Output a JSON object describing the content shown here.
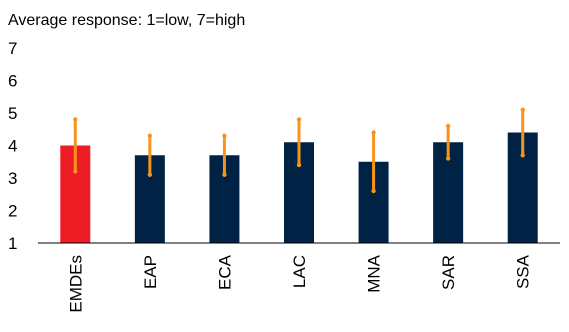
{
  "chart_data": {
    "type": "bar",
    "title": "",
    "subtitle": "Average response: 1=low, 7=high",
    "xlabel": "",
    "ylabel": "",
    "categories": [
      "EMDEs",
      "EAP",
      "ECA",
      "LAC",
      "MNA",
      "SAR",
      "SSA"
    ],
    "values": [
      4.0,
      3.7,
      3.7,
      4.1,
      3.5,
      4.1,
      4.4
    ],
    "error_low": [
      3.2,
      3.1,
      3.1,
      3.4,
      2.6,
      3.6,
      3.7
    ],
    "error_high": [
      4.8,
      4.3,
      4.3,
      4.8,
      4.4,
      4.6,
      5.1
    ],
    "ylim": [
      1,
      7
    ],
    "yticks": [
      "1",
      "2",
      "3",
      "4",
      "5",
      "6",
      "7"
    ],
    "grid": false,
    "legend": "none",
    "colors": {
      "highlight_bar": "#EE1C25",
      "bar": "#002345",
      "error_bar": "#F7941D",
      "axis": "#000000"
    },
    "highlight_index": 0
  }
}
